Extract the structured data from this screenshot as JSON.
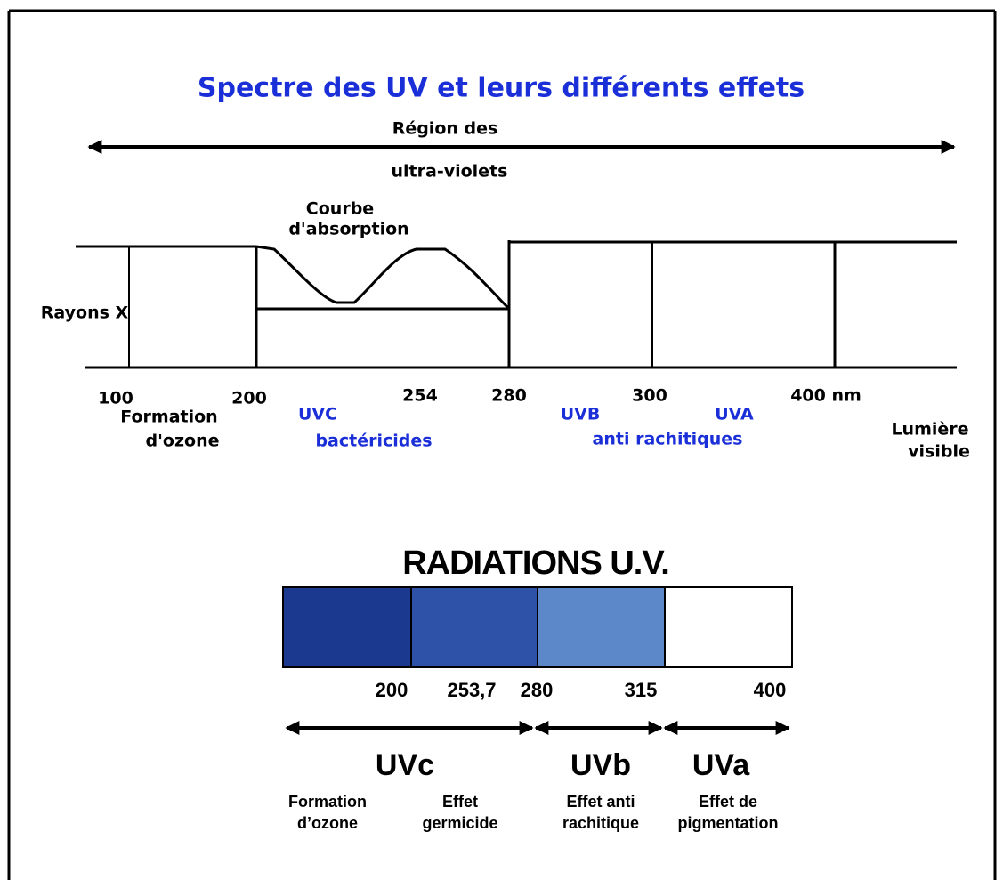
{
  "title": "Spectre des UV et leurs différents effets",
  "region": {
    "lines": [
      "Région des",
      "ultra-violets"
    ]
  },
  "curve": {
    "lines": [
      "Courbe",
      "d'absorption"
    ]
  },
  "xrays": "Rayons X",
  "scale": [
    "100",
    "200",
    "254",
    "280",
    "300",
    "400 nm"
  ],
  "zones": {
    "ozone": [
      "Formation",
      "d'ozone"
    ],
    "uvc": {
      "name": "UVC",
      "effect": "bactéricides"
    },
    "uvb": {
      "name": "UVB",
      "effect": "anti rachitiques"
    },
    "uva": {
      "name": "UVA"
    },
    "visible": [
      "Lumière",
      "visible"
    ]
  },
  "radiations": {
    "title": "RADIATIONS U.V.",
    "ticks": [
      "200",
      "253,7",
      "280",
      "315",
      "400"
    ],
    "bands": [
      {
        "name": "UVc",
        "effects": [
          [
            "Formation",
            "d’ozone"
          ],
          [
            "Effet",
            "germicide"
          ]
        ]
      },
      {
        "name": "UVb",
        "effects": [
          [
            "Effet anti",
            "rachitique"
          ]
        ]
      },
      {
        "name": "UVa",
        "effects": [
          [
            "Effet de",
            "pigmentation"
          ]
        ]
      }
    ]
  }
}
